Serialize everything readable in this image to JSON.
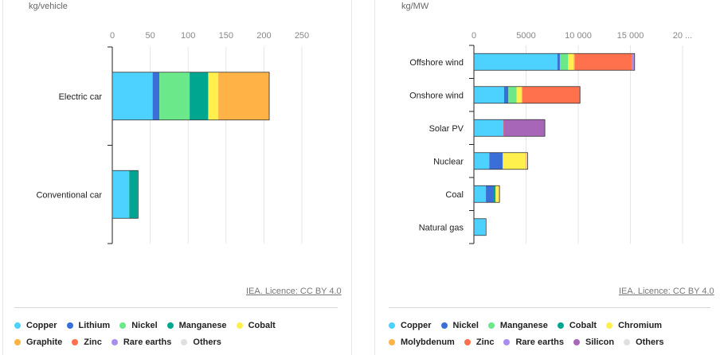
{
  "charts": [
    {
      "id": "left",
      "unit": "kg/vehicle",
      "licence": "IEA. Licence: CC BY 4.0",
      "legend_rows": [
        [
          "Copper",
          "Lithium",
          "Nickel",
          "Manganese",
          "Cobalt"
        ],
        [
          "Graphite",
          "Zinc",
          "Rare earths",
          "Others"
        ]
      ]
    },
    {
      "id": "right",
      "unit": "kg/MW",
      "licence": "IEA. Licence: CC BY 4.0",
      "legend_rows": [
        [
          "Copper",
          "Nickel",
          "Manganese",
          "Cobalt",
          "Chromium"
        ],
        [
          "Molybdenum",
          "Zinc",
          "Rare earths",
          "Silicon",
          "Others"
        ]
      ]
    }
  ],
  "colors": {
    "Copper": "#4dd2ff",
    "Lithium": "#3a6fd8",
    "Nickel": "#6be88a",
    "Manganese": "#00a68f",
    "Cobalt": "#fff04d",
    "Graphite": "#ffb347",
    "Zinc": "#ff704d",
    "Rare earths": "#a98ef0",
    "Others": "#e0e0e0",
    "Chromium": "#fff04d",
    "Molybdenum": "#ffb347",
    "Silicon": "#a866b8",
    "Cobalt_right": "#00a68f",
    "Nickel_right": "#3a6fd8",
    "Manganese_right": "#6be88a"
  },
  "chart_data": [
    {
      "type": "bar",
      "orientation": "horizontal",
      "stacked": true,
      "categories": [
        "Electric car",
        "Conventional car"
      ],
      "xlim": [
        0,
        250
      ],
      "xticks": [
        "0",
        "50",
        "100",
        "150",
        "200",
        "250"
      ],
      "xtick_values": [
        0,
        50,
        100,
        150,
        200,
        250
      ],
      "series": [
        {
          "name": "Copper",
          "color": "#4dd2ff",
          "values": [
            53.2,
            22.3
          ]
        },
        {
          "name": "Lithium",
          "color": "#3a6fd8",
          "values": [
            8.9,
            0
          ]
        },
        {
          "name": "Nickel",
          "color": "#6be88a",
          "values": [
            39.9,
            0
          ]
        },
        {
          "name": "Manganese",
          "color": "#00a68f",
          "values": [
            24.5,
            11.2
          ]
        },
        {
          "name": "Cobalt",
          "color": "#fff04d",
          "values": [
            13.3,
            0
          ]
        },
        {
          "name": "Graphite",
          "color": "#ffb347",
          "values": [
            66.3,
            0
          ]
        },
        {
          "name": "Zinc",
          "color": "#ff704d",
          "values": [
            0.1,
            0.2
          ]
        },
        {
          "name": "Rare earths",
          "color": "#a98ef0",
          "values": [
            0.5,
            0
          ]
        },
        {
          "name": "Others",
          "color": "#e0e0e0",
          "values": [
            0.3,
            0.3
          ]
        }
      ]
    },
    {
      "type": "bar",
      "orientation": "horizontal",
      "stacked": true,
      "categories": [
        "Offshore wind",
        "Onshore wind",
        "Solar PV",
        "Nuclear",
        "Coal",
        "Natural gas"
      ],
      "xlim": [
        0,
        20000
      ],
      "xticks": [
        "0",
        "5000",
        "10 000",
        "15 000",
        "20 ..."
      ],
      "xtick_values": [
        0,
        5000,
        10000,
        15000,
        20000
      ],
      "series": [
        {
          "name": "Copper",
          "color": "#4dd2ff",
          "values": [
            8000,
            2900,
            2822,
            1473,
            1150,
            1100
          ]
        },
        {
          "name": "Nickel",
          "color": "#3a6fd8",
          "values": [
            240,
            404,
            1,
            1297,
            721,
            16
          ]
        },
        {
          "name": "Manganese",
          "color": "#6be88a",
          "values": [
            790,
            780,
            0,
            0,
            0,
            0
          ]
        },
        {
          "name": "Cobalt",
          "color": "#00a68f",
          "values": [
            0,
            0,
            0,
            0,
            210,
            0
          ]
        },
        {
          "name": "Chromium",
          "color": "#fff04d",
          "values": [
            525,
            470,
            0,
            2190,
            308,
            48
          ]
        },
        {
          "name": "Molybdenum",
          "color": "#ffb347",
          "values": [
            109,
            99,
            0,
            70,
            66,
            0
          ]
        },
        {
          "name": "Zinc",
          "color": "#ff704d",
          "values": [
            5500,
            5500,
            30,
            0,
            0,
            0
          ]
        },
        {
          "name": "Rare earths",
          "color": "#a98ef0",
          "values": [
            239,
            14,
            0,
            0.5,
            0,
            0
          ]
        },
        {
          "name": "Silicon",
          "color": "#a866b8",
          "values": [
            0,
            0,
            3948,
            0,
            0,
            0
          ]
        },
        {
          "name": "Others",
          "color": "#e0e0e0",
          "values": [
            0,
            0,
            0,
            120,
            0,
            0
          ]
        }
      ]
    }
  ]
}
